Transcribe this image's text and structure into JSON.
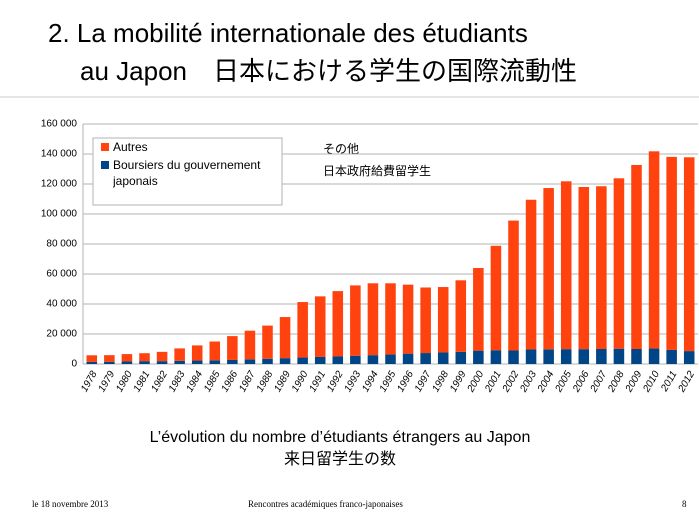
{
  "header": {
    "title_line1": "2. La mobilité internationale des étudiants",
    "title_line2": "au Japon　日本における学生の国際流動性"
  },
  "chart_data": {
    "type": "bar",
    "stacked": true,
    "categories": [
      "1978",
      "1979",
      "1980",
      "1981",
      "1982",
      "1983",
      "1984",
      "1985",
      "1986",
      "1987",
      "1988",
      "1989",
      "1990",
      "1991",
      "1992",
      "1993",
      "1994",
      "1995",
      "1996",
      "1997",
      "1998",
      "1999",
      "2000",
      "2001",
      "2002",
      "2003",
      "2004",
      "2005",
      "2006",
      "2007",
      "2008",
      "2009",
      "2010",
      "2011",
      "2012"
    ],
    "series": [
      {
        "name": "Boursiers du gouvernement japonais",
        "color": "#004586",
        "values": [
          1400,
          1500,
          1700,
          1900,
          1900,
          2100,
          2300,
          2500,
          2700,
          3100,
          3500,
          3900,
          4300,
          4700,
          5000,
          5500,
          5900,
          6300,
          6900,
          7300,
          7700,
          8100,
          8900,
          9200,
          9000,
          9700,
          9800,
          9900,
          9900,
          10000,
          10200,
          10000,
          10300,
          9400,
          8600
        ]
      },
      {
        "name": "Autres",
        "color": "#ff420e",
        "values": [
          4400,
          4400,
          4900,
          5300,
          6200,
          8300,
          10100,
          12500,
          15900,
          19100,
          22100,
          27400,
          37000,
          40400,
          43600,
          46900,
          47900,
          47500,
          46000,
          43700,
          43600,
          47700,
          55100,
          69600,
          86600,
          99800,
          107500,
          111900,
          108100,
          108500,
          113600,
          122700,
          131500,
          128700,
          129200
        ]
      }
    ],
    "ylim": [
      0,
      160000
    ],
    "yticks": [
      0,
      {
        "value": 20000,
        "label": "20 000"
      },
      {
        "value": 40000,
        "label": "40 000"
      },
      {
        "value": 60000,
        "label": "60 000"
      },
      {
        "value": 80000,
        "label": "80 000"
      },
      {
        "value": 100000,
        "label": "100 000"
      },
      {
        "value": 120000,
        "label": "120 000"
      },
      {
        "value": 140000,
        "label": "140 000"
      },
      {
        "value": 160000,
        "label": "160 000"
      }
    ],
    "grid": true,
    "legend": "upper left",
    "annotations": [
      "その他",
      "日本政府給費留学生"
    ]
  },
  "caption": {
    "line1": "L’évolution du nombre d’étudiants étrangers au Japon",
    "line2": "来日留学生の数"
  },
  "footer": {
    "date": "le 18 novembre 2013",
    "event": "Rencontres académiques franco-japonaises",
    "page": "8"
  }
}
